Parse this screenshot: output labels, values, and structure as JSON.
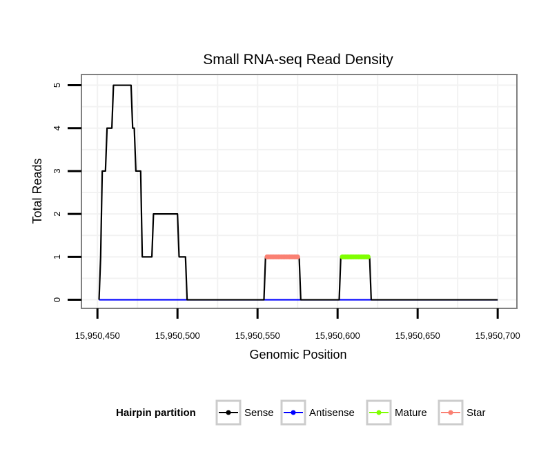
{
  "chart_data": {
    "type": "line",
    "title": "Small RNA-seq Read Density",
    "xlabel": "Genomic Position",
    "ylabel": "Total Reads",
    "xlim": [
      15950440,
      15950712
    ],
    "ylim": [
      -0.2,
      5.25
    ],
    "x_ticks": [
      15950450,
      15950500,
      15950550,
      15950600,
      15950650,
      15950700
    ],
    "x_tick_labels": [
      "15,950,450",
      "15,950,500",
      "15,950,550",
      "15,950,600",
      "15,950,650",
      "15,950,700"
    ],
    "y_ticks": [
      0,
      1,
      2,
      3,
      4,
      5
    ],
    "y_tick_labels": [
      "0",
      "1",
      "2",
      "3",
      "4",
      "5"
    ],
    "grid": true,
    "legend": {
      "title": "Hairpin partition",
      "position": "bottom",
      "entries": [
        "Sense",
        "Antisense",
        "Mature",
        "Star"
      ]
    },
    "series": [
      {
        "name": "Sense",
        "color": "#000000",
        "style": "line",
        "x": [
          15950451,
          15950452,
          15950453,
          15950454,
          15950455,
          15950456,
          15950457,
          15950458,
          15950459,
          15950460,
          15950461,
          15950462,
          15950470,
          15950471,
          15950472,
          15950473,
          15950474,
          15950475,
          15950476,
          15950477,
          15950478,
          15950479,
          15950480,
          15950481,
          15950482,
          15950483,
          15950484,
          15950485,
          15950486,
          15950487,
          15950500,
          15950501,
          15950502,
          15950503,
          15950504,
          15950505,
          15950506,
          15950554,
          15950555,
          15950576,
          15950577,
          15950601,
          15950602,
          15950620,
          15950621,
          15950700
        ],
        "y": [
          0,
          1,
          3,
          3,
          3,
          4,
          4,
          4,
          4,
          5,
          5,
          5,
          5,
          5,
          4,
          4,
          3,
          3,
          3,
          3,
          1,
          1,
          1,
          1,
          1,
          1,
          1,
          2,
          2,
          2,
          2,
          1,
          1,
          1,
          1,
          1,
          0,
          0,
          1,
          1,
          0,
          0,
          1,
          1,
          0,
          0
        ]
      },
      {
        "name": "Antisense",
        "color": "#0000ff",
        "style": "line",
        "x": [
          15950451,
          15950700
        ],
        "y": [
          0,
          0
        ]
      },
      {
        "name": "Mature",
        "color": "#7fff00",
        "style": "points",
        "x": [
          15950603,
          15950604,
          15950605,
          15950606,
          15950607,
          15950608,
          15950609,
          15950610,
          15950611,
          15950612,
          15950613,
          15950614,
          15950615,
          15950616,
          15950617,
          15950618,
          15950619
        ],
        "y": [
          1,
          1,
          1,
          1,
          1,
          1,
          1,
          1,
          1,
          1,
          1,
          1,
          1,
          1,
          1,
          1,
          1
        ]
      },
      {
        "name": "Star",
        "color": "#fa8072",
        "style": "points",
        "x": [
          15950556,
          15950557,
          15950558,
          15950559,
          15950560,
          15950561,
          15950562,
          15950563,
          15950564,
          15950565,
          15950566,
          15950567,
          15950568,
          15950569,
          15950570,
          15950571,
          15950572,
          15950573,
          15950574,
          15950575
        ],
        "y": [
          1,
          1,
          1,
          1,
          1,
          1,
          1,
          1,
          1,
          1,
          1,
          1,
          1,
          1,
          1,
          1,
          1,
          1,
          1,
          1
        ]
      }
    ]
  }
}
